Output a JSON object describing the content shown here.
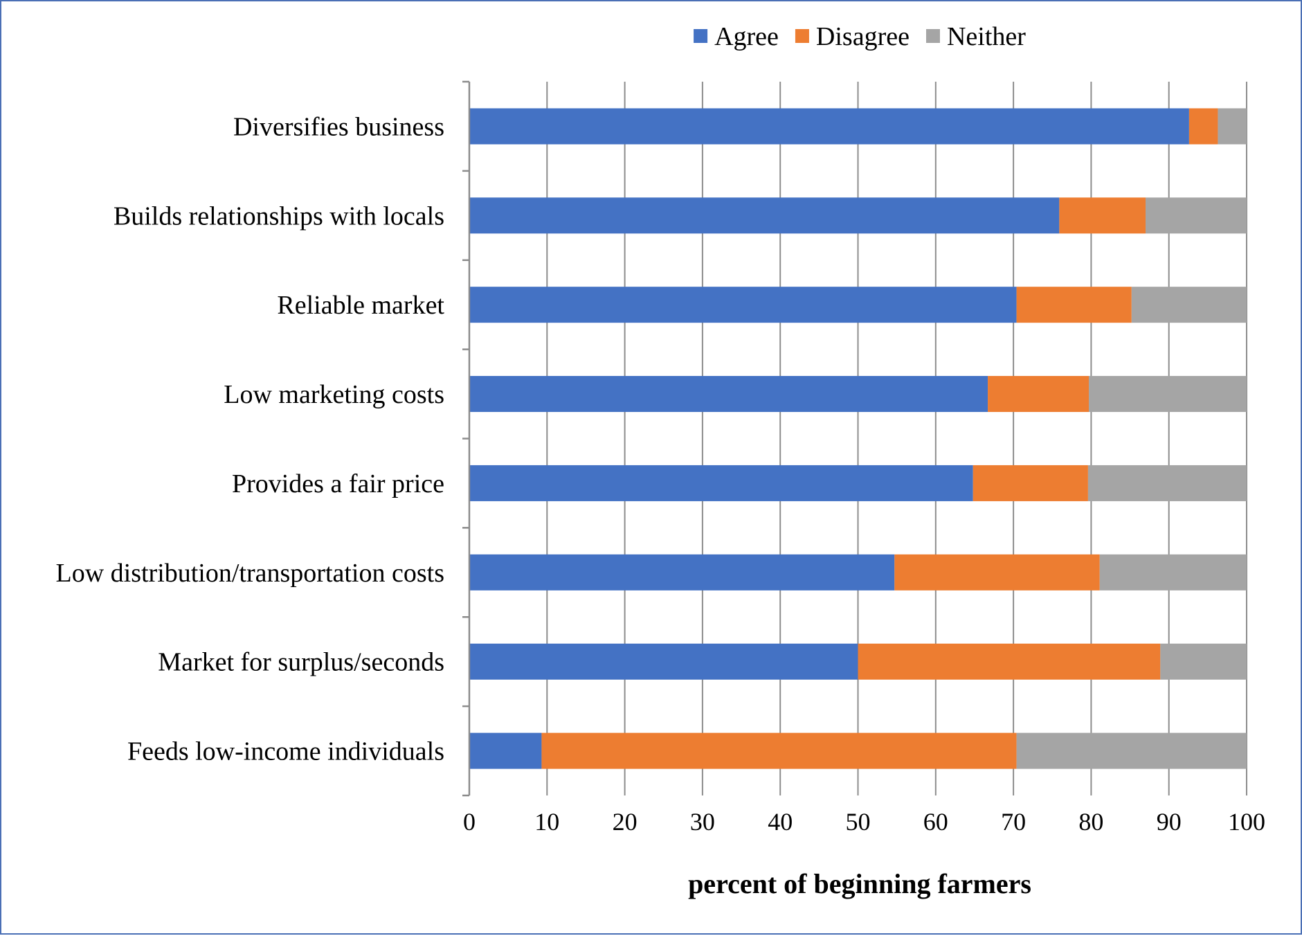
{
  "chart_data": {
    "type": "bar",
    "orientation": "horizontal",
    "stacked": true,
    "title": "",
    "xlabel": "percent of beginning farmers",
    "ylabel": "",
    "xlim": [
      0,
      100
    ],
    "xticks": [
      0,
      10,
      20,
      30,
      40,
      50,
      60,
      70,
      80,
      90,
      100
    ],
    "grid": true,
    "legend_position": "top-center",
    "categories": [
      "Diversifies business",
      "Builds relationships with locals",
      "Reliable market",
      "Low marketing costs",
      "Provides a fair price",
      "Low distribution/transportation costs",
      "Market for surplus/seconds",
      "Feeds low-income individuals"
    ],
    "series": [
      {
        "name": "Agree",
        "color": "#4472c4",
        "values": [
          92.6,
          75.9,
          70.4,
          66.7,
          64.8,
          54.7,
          50.0,
          9.3
        ]
      },
      {
        "name": "Disagree",
        "color": "#ed7d31",
        "values": [
          3.7,
          11.1,
          14.8,
          13.0,
          14.8,
          26.4,
          38.9,
          61.1
        ]
      },
      {
        "name": "Neither",
        "color": "#a5a5a5",
        "values": [
          3.7,
          13.0,
          14.8,
          20.3,
          20.4,
          18.9,
          11.1,
          29.6
        ]
      }
    ]
  }
}
